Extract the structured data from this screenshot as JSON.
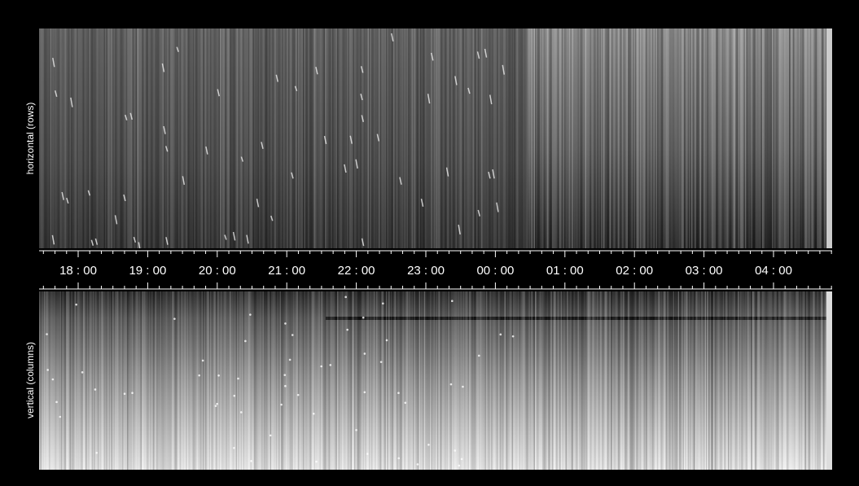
{
  "panels": [
    {
      "label": "horizontal (rows)"
    },
    {
      "label": "vertical (columns)"
    }
  ],
  "time_axis": {
    "labels": [
      "18 : 00",
      "19 : 00",
      "20 : 00",
      "21 : 00",
      "22 : 00",
      "23 : 00",
      "00 : 00",
      "01 : 00",
      "02 : 00",
      "03 : 00",
      "04 : 00"
    ]
  }
}
